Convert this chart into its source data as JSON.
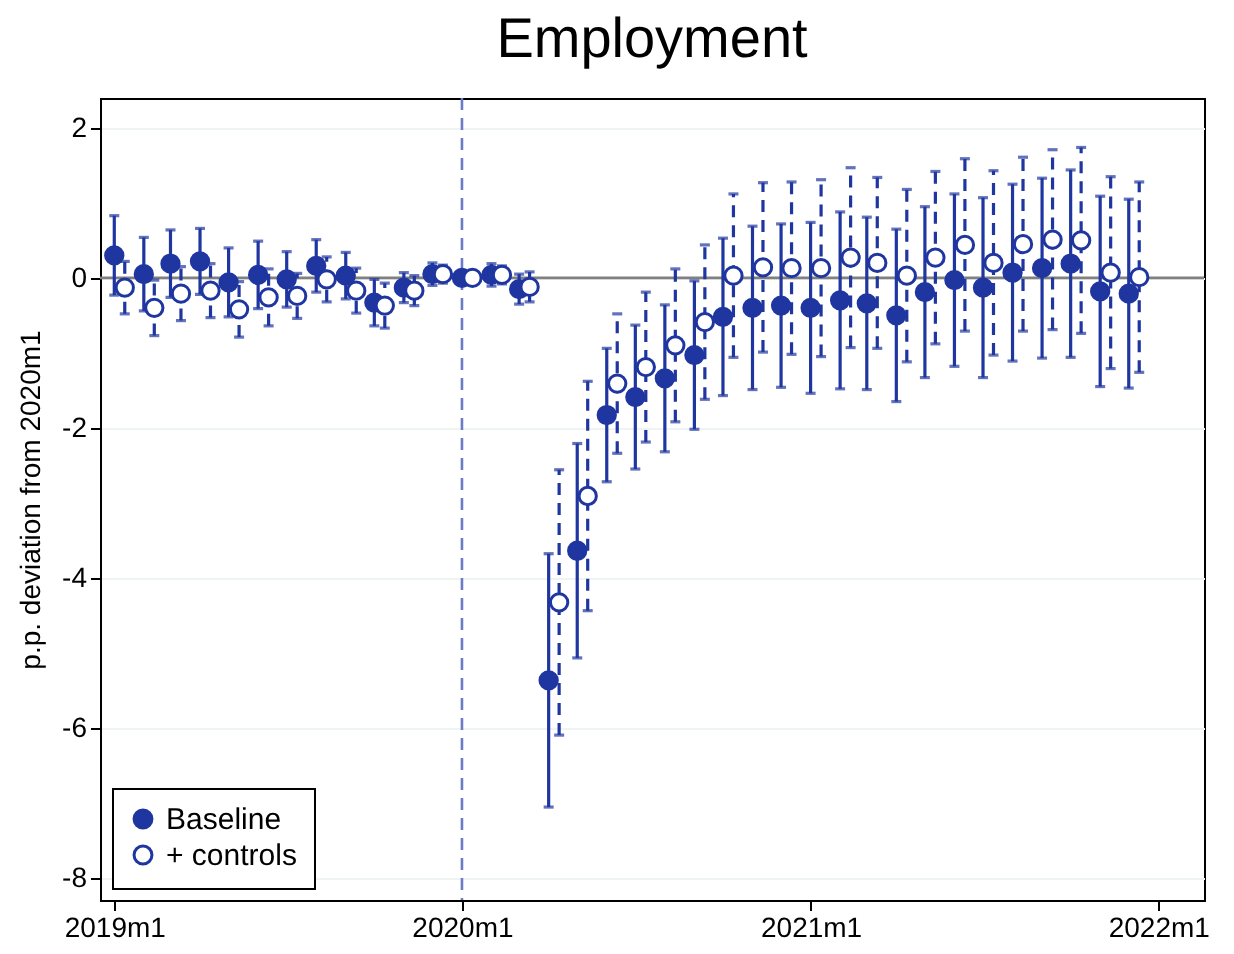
{
  "chart_data": {
    "type": "scatter",
    "title": "Employment",
    "ylabel": "p.p. deviation from 2020m1",
    "x": [
      "2019-01",
      "2019-02",
      "2019-03",
      "2019-04",
      "2019-05",
      "2019-06",
      "2019-07",
      "2019-08",
      "2019-09",
      "2019-10",
      "2019-11",
      "2019-12",
      "2020-01",
      "2020-02",
      "2020-03",
      "2020-04",
      "2020-05",
      "2020-06",
      "2020-07",
      "2020-08",
      "2020-09",
      "2020-10",
      "2020-11",
      "2020-12",
      "2021-01",
      "2021-02",
      "2021-03",
      "2021-04",
      "2021-05",
      "2021-06",
      "2021-07",
      "2021-08",
      "2021-09",
      "2021-10",
      "2021-11",
      "2021-12"
    ],
    "series": [
      {
        "name": "Baseline",
        "color": "#1f36a0",
        "marker": "circle",
        "line_style": "solid",
        "values": [
          0.3,
          0.05,
          0.19,
          0.22,
          -0.06,
          0.04,
          -0.02,
          0.16,
          0.03,
          -0.33,
          -0.13,
          0.05,
          0,
          0.04,
          -0.15,
          -5.37,
          -3.64,
          -1.83,
          -1.59,
          -1.34,
          -1.03,
          -0.52,
          -0.4,
          -0.37,
          -0.4,
          -0.3,
          -0.34,
          -0.5,
          -0.19,
          -0.03,
          -0.13,
          0.07,
          0.13,
          0.19,
          -0.18,
          -0.21
        ],
        "errors": [
          0.53,
          0.49,
          0.45,
          0.44,
          0.46,
          0.45,
          0.37,
          0.35,
          0.31,
          0.31,
          0.2,
          0.15,
          null,
          0.15,
          0.2,
          1.69,
          1.43,
          0.89,
          0.96,
          0.98,
          0.99,
          1.05,
          1.09,
          1.09,
          1.14,
          1.18,
          1.15,
          1.15,
          1.14,
          1.15,
          1.2,
          1.18,
          1.2,
          1.25,
          1.27,
          1.26
        ]
      },
      {
        "name": "+ controls",
        "color": "#1f36a0",
        "marker": "circle",
        "line_style": "dashed",
        "x": [
          "2019-01-12",
          "2019-02-12",
          "2019-03-12",
          "2019-04-12",
          "2019-05-12",
          "2019-06-12",
          "2019-07-12",
          "2019-08-12",
          "2019-09-12",
          "2019-10-12",
          "2019-11-12",
          "2019-12-12",
          "2020-01-12",
          "2020-02-12",
          "2020-03-12",
          "2020-04-12",
          "2020-05-12",
          "2020-06-12",
          "2020-07-12",
          "2020-08-12",
          "2020-09-12",
          "2020-10-12",
          "2020-11-12",
          "2020-12-12",
          "2021-01-12",
          "2021-02-12",
          "2021-03-12",
          "2021-04-12",
          "2021-05-12",
          "2021-06-12",
          "2021-07-12",
          "2021-08-12",
          "2021-09-12",
          "2021-10-12",
          "2021-11-12",
          "2021-12-12"
        ],
        "values": [
          -0.13,
          -0.4,
          -0.21,
          -0.17,
          -0.42,
          -0.26,
          -0.24,
          -0.02,
          -0.17,
          -0.37,
          -0.17,
          0.05,
          0,
          0.04,
          -0.12,
          -4.33,
          -2.91,
          -1.41,
          -1.19,
          -0.9,
          -0.59,
          0.03,
          0.14,
          0.13,
          0.13,
          0.27,
          0.2,
          0.03,
          0.27,
          0.44,
          0.2,
          0.45,
          0.51,
          0.5,
          0.07,
          0.01
        ],
        "errors": [
          0.35,
          0.37,
          0.36,
          0.36,
          0.37,
          0.38,
          0.3,
          0.3,
          0.3,
          0.3,
          0.2,
          0.12,
          null,
          0.12,
          0.2,
          1.77,
          1.53,
          0.93,
          1.0,
          1.02,
          1.03,
          1.09,
          1.13,
          1.15,
          1.18,
          1.2,
          1.14,
          1.15,
          1.15,
          1.15,
          1.23,
          1.16,
          1.2,
          1.24,
          1.28,
          1.27
        ]
      }
    ],
    "xlim": [
      "2018-12-17",
      "2022-02-18"
    ],
    "xticks": [
      {
        "value": "2019-01",
        "label": "2019m1"
      },
      {
        "value": "2020-01",
        "label": "2020m1"
      },
      {
        "value": "2021-01",
        "label": "2021m1"
      },
      {
        "value": "2022-01",
        "label": "2022m1"
      }
    ],
    "ylim": [
      -8.3,
      2.4
    ],
    "yticks": [
      -8,
      -6,
      -4,
      -2,
      0,
      2
    ],
    "grid": "y",
    "legend": "bottom left",
    "ref_lines": [
      {
        "axis": "x",
        "value": "2020-01",
        "color": "#6a7cc8",
        "line_style": "dashed"
      },
      {
        "axis": "y",
        "value": 0,
        "color": "#808080",
        "line_style": "solid"
      }
    ]
  }
}
